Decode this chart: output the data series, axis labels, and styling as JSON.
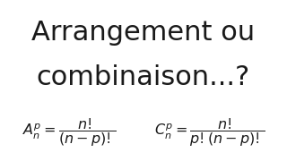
{
  "title_line1": "Arrangement ou",
  "title_line2": "combinaison...?",
  "formula_A": "$A_n^p = \\dfrac{n!}{(n-p)!}$",
  "formula_C": "$C_n^p = \\dfrac{n!}{p!(n-p)!}$",
  "bg_color": "#ffffff",
  "text_color": "#1a1a1a",
  "title_fontsize": 22,
  "formula_fontsize": 11.5
}
